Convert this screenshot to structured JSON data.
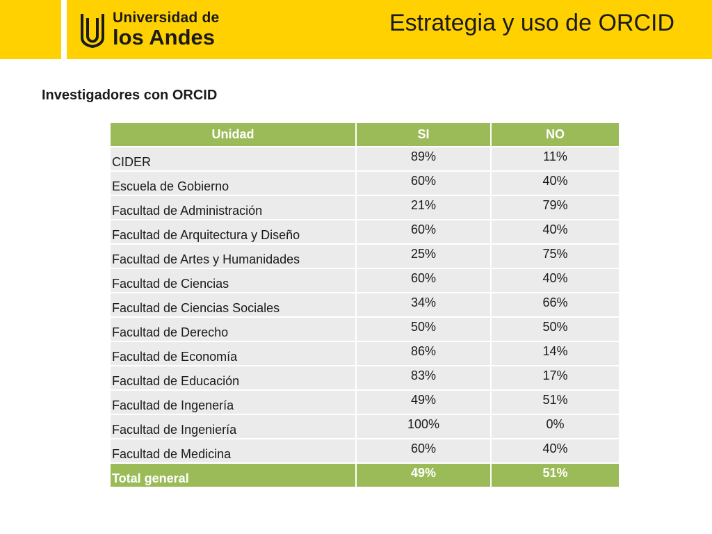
{
  "header": {
    "logo_line1": "Universidad de",
    "logo_line2": "los Andes",
    "title": "Estrategia y uso de ORCID"
  },
  "colors": {
    "brand_yellow": "#FFD100",
    "table_green": "#9BBB59",
    "row_gray": "#EBEBEB"
  },
  "section": {
    "heading": "Investigadores con ORCID"
  },
  "table": {
    "headers": [
      "Unidad",
      "SI",
      "NO"
    ],
    "rows": [
      {
        "unidad": "CIDER",
        "si": "89%",
        "no": "11%"
      },
      {
        "unidad": "Escuela de Gobierno",
        "si": "60%",
        "no": "40%"
      },
      {
        "unidad": "Facultad de Administración",
        "si": "21%",
        "no": "79%"
      },
      {
        "unidad": "Facultad de Arquitectura y Diseño",
        "si": "60%",
        "no": "40%"
      },
      {
        "unidad": "Facultad de Artes y Humanidades",
        "si": "25%",
        "no": "75%"
      },
      {
        "unidad": "Facultad de Ciencias",
        "si": "60%",
        "no": "40%"
      },
      {
        "unidad": "Facultad de Ciencias Sociales",
        "si": "34%",
        "no": "66%"
      },
      {
        "unidad": "Facultad de Derecho",
        "si": "50%",
        "no": "50%"
      },
      {
        "unidad": "Facultad de Economía",
        "si": "86%",
        "no": "14%"
      },
      {
        "unidad": "Facultad de Educación",
        "si": "83%",
        "no": "17%"
      },
      {
        "unidad": "Facultad de Ingenería",
        "si": "49%",
        "no": "51%"
      },
      {
        "unidad": "Facultad de Ingeniería",
        "si": "100%",
        "no": "0%"
      },
      {
        "unidad": "Facultad de Medicina",
        "si": "60%",
        "no": "40%"
      }
    ],
    "total": {
      "unidad": "Total general",
      "si": "49%",
      "no": "51%"
    }
  }
}
